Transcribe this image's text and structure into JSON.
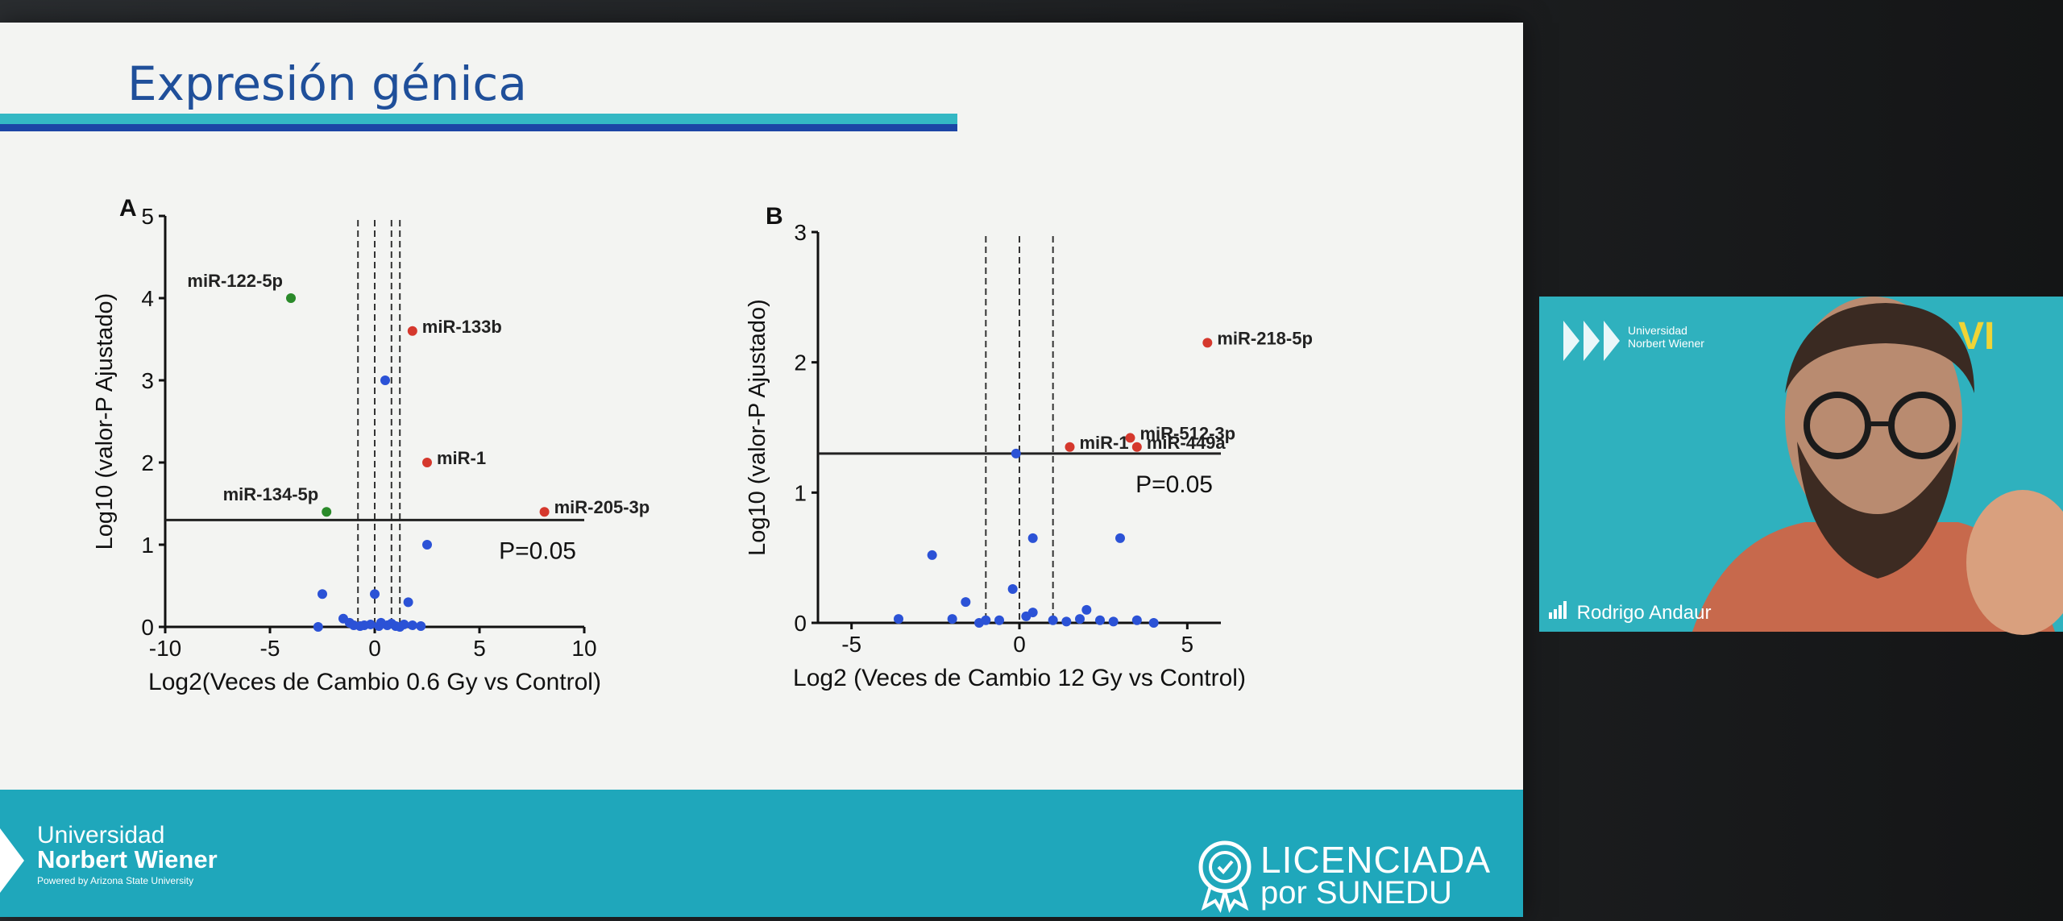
{
  "slide": {
    "title": "Expresión génica"
  },
  "footer": {
    "university_line1": "Universidad",
    "university_line2": "Norbert Wiener",
    "university_line3": "Powered by Arizona State University",
    "licencia_line1": "LICENCIADA",
    "licencia_line2": "por SUNEDU"
  },
  "video": {
    "participant_name": "Rodrigo Andaur",
    "logo_line1": "Universidad",
    "logo_line2": "Norbert Wiener",
    "roman": "VI"
  },
  "chart_data": [
    {
      "panel": "A",
      "type": "scatter",
      "xlabel": "Log2(Veces de Cambio  0.6 Gy vs Control)",
      "ylabel": "Log10 (valor-P Ajustado)",
      "xlim": [
        -10,
        10
      ],
      "ylim": [
        0,
        5
      ],
      "x_ticks": [
        "-10",
        "-5",
        "0",
        "5",
        "10"
      ],
      "y_ticks": [
        "0",
        "1",
        "2",
        "3",
        "4",
        "5"
      ],
      "threshold_label": "P=0.05",
      "threshold_y": 1.3,
      "vlines": [
        -0.8,
        0,
        0.8,
        1.2
      ],
      "labeled_points": [
        {
          "label": "miR-122-5p",
          "x": -4,
          "y": 4.0,
          "color": "#2a8a2a"
        },
        {
          "label": "miR-133b",
          "x": 1.8,
          "y": 3.6,
          "color": "#d5382d"
        },
        {
          "label": "miR-1",
          "x": 2.5,
          "y": 2.0,
          "color": "#d5382d"
        },
        {
          "label": "miR-134-5p",
          "x": -2.3,
          "y": 1.4,
          "color": "#2a8a2a"
        },
        {
          "label": "miR-205-3p",
          "x": 8.1,
          "y": 1.4,
          "color": "#d5382d"
        }
      ],
      "other_points": {
        "color": "#2b52d6",
        "x": [
          0.5,
          2.5,
          -2.5,
          0,
          1.6,
          -1.5,
          -2.7,
          -1.2,
          -0.5,
          -0.2,
          0.2,
          0.6,
          1.0,
          1.4,
          1.8,
          2.2,
          -1.0,
          0.8,
          1.2,
          -0.7,
          0.3
        ],
        "y": [
          3.0,
          1.0,
          0.4,
          0.4,
          0.3,
          0.1,
          0,
          0.05,
          0.02,
          0.03,
          0.01,
          0.02,
          0.01,
          0.03,
          0.02,
          0.01,
          0.02,
          0.04,
          0,
          0.01,
          0.05
        ]
      }
    },
    {
      "panel": "B",
      "type": "scatter",
      "xlabel": "Log2 (Veces de Cambio  12 Gy vs Control)",
      "ylabel": "Log10 (valor-P Ajustado)",
      "xlim": [
        -6,
        6
      ],
      "ylim": [
        0,
        3
      ],
      "x_ticks": [
        "-5",
        "0",
        "5"
      ],
      "y_ticks": [
        "0",
        "1",
        "2",
        "3"
      ],
      "threshold_label": "P=0.05",
      "threshold_y": 1.3,
      "vlines": [
        -1,
        0,
        1
      ],
      "labeled_points": [
        {
          "label": "miR-218-5p",
          "x": 5.6,
          "y": 2.15,
          "color": "#d5382d"
        },
        {
          "label": "miR-1",
          "x": 1.5,
          "y": 1.35,
          "color": "#d5382d"
        },
        {
          "label": "miR-512-3p",
          "x": 3.3,
          "y": 1.42,
          "color": "#d5382d"
        },
        {
          "label": "miR-449a",
          "x": 3.5,
          "y": 1.35,
          "color": "#d5382d"
        }
      ],
      "other_points": {
        "color": "#2b52d6",
        "x": [
          -0.1,
          0.4,
          3.0,
          -2.6,
          -0.2,
          -1.6,
          2.0,
          -3.6,
          -0.6,
          0.4,
          1.0,
          1.4,
          1.8,
          2.4,
          2.8,
          3.5,
          4.0,
          -1.2,
          -2.0,
          0.2,
          -1.0
        ],
        "y": [
          1.3,
          0.65,
          0.65,
          0.52,
          0.26,
          0.16,
          0.1,
          0.03,
          0.02,
          0.08,
          0.02,
          0.01,
          0.03,
          0.02,
          0.01,
          0.02,
          0,
          0,
          0.03,
          0.05,
          0.02
        ]
      }
    }
  ]
}
